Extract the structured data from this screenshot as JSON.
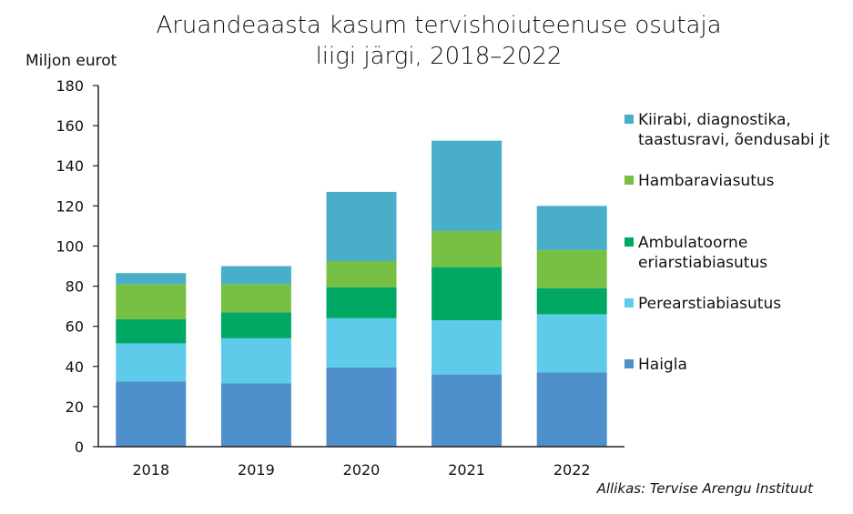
{
  "chart_data": {
    "type": "bar",
    "stacked": true,
    "title_lines": [
      "Aruandeaasta kasum tervishoiuteenuse osutaja",
      "liigi järgi, 2018–2022"
    ],
    "ylabel": "Miljon eurot",
    "xlabel": "",
    "ylim": [
      0,
      180
    ],
    "yticks": [
      0,
      20,
      40,
      60,
      80,
      100,
      120,
      140,
      160,
      180
    ],
    "categories": [
      "2018",
      "2019",
      "2020",
      "2021",
      "2022"
    ],
    "grid": false,
    "legend_position": "right",
    "series": [
      {
        "name": "Haigla",
        "color": "#4f8fcc",
        "values": [
          32.5,
          31.5,
          39.5,
          36,
          37
        ]
      },
      {
        "name": "Perearstiabiasutus",
        "color": "#5ecbea",
        "values": [
          19,
          22.5,
          24.5,
          27,
          29
        ]
      },
      {
        "name": "Ambulatoorne eriarstiabiasutus",
        "legend_lines": [
          "Ambulatoorne",
          "eriarstiabiasutus"
        ],
        "color": "#00a864",
        "values": [
          12,
          13,
          15.5,
          26.5,
          13
        ]
      },
      {
        "name": "Hambaraviasutus",
        "color": "#77c043",
        "values": [
          17.5,
          14,
          13,
          18,
          19
        ]
      },
      {
        "name": "Kiirabi, diagnostika, taastusravi, õendusabi jt",
        "legend_lines": [
          "Kiirabi, diagnostika,",
          "taastusravi, õendusabi jt"
        ],
        "color": "#49aec8",
        "values": [
          5.5,
          9,
          34.5,
          45,
          22
        ]
      }
    ],
    "source": "Allikas: Tervise Arengu Instituut"
  }
}
